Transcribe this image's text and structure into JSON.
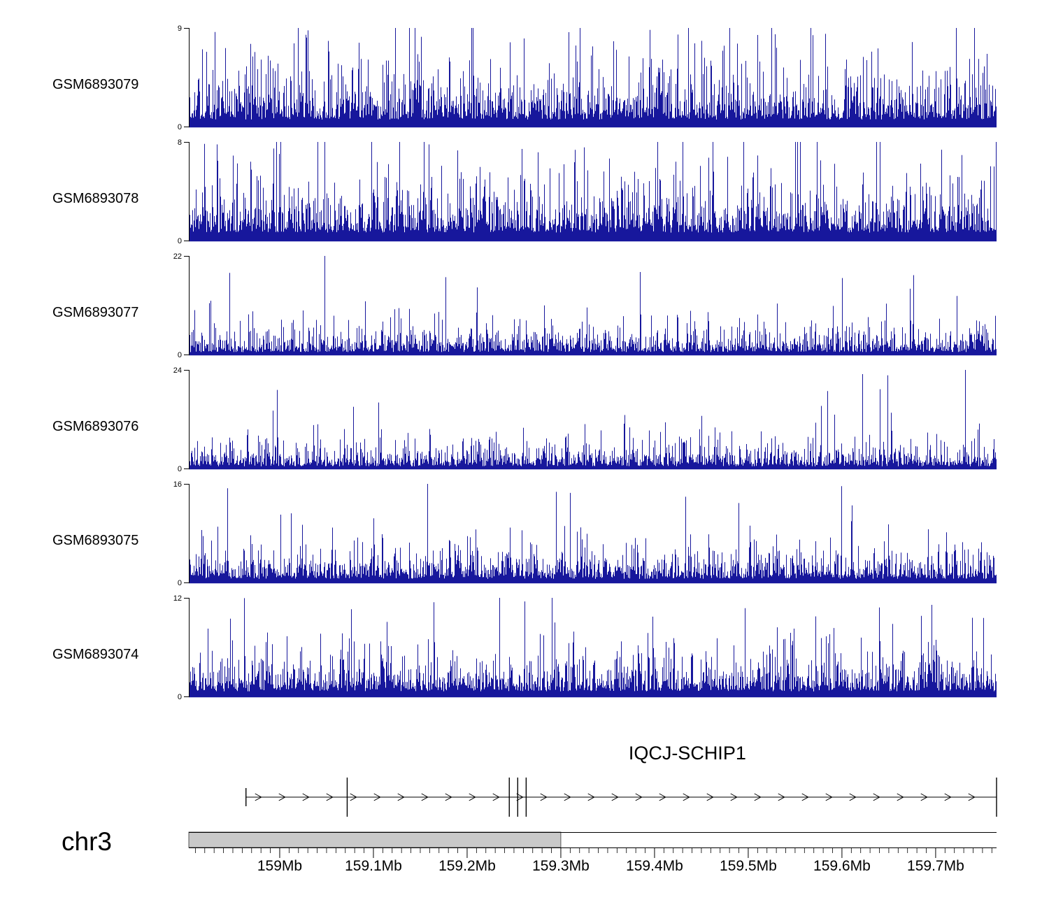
{
  "chart_data": {
    "type": "area",
    "kind": "genome-coverage-tracks",
    "title": "",
    "signal_color": "#17179c",
    "grid": false,
    "tracks": [
      {
        "name": "GSM6893079",
        "ymin": 0,
        "ymax": 9,
        "seed": 41
      },
      {
        "name": "GSM6893078",
        "ymin": 0,
        "ymax": 8,
        "seed": 42
      },
      {
        "name": "GSM6893077",
        "ymin": 0,
        "ymax": 22,
        "seed": 43
      },
      {
        "name": "GSM6893076",
        "ymin": 0,
        "ymax": 24,
        "seed": 44
      },
      {
        "name": "GSM6893075",
        "ymin": 0,
        "ymax": 16,
        "seed": 45
      },
      {
        "name": "GSM6893074",
        "ymin": 0,
        "ymax": 12,
        "seed": 46
      }
    ],
    "x_axis": {
      "chromosome": "chr3",
      "unit": "Mb",
      "start_mb": 158.903,
      "end_mb": 159.765,
      "minor_tick_interval_mb": 0.01,
      "major_ticks_mb": [
        159.0,
        159.1,
        159.2,
        159.3,
        159.4,
        159.5,
        159.6,
        159.7
      ],
      "tick_labels": [
        "159Mb",
        "159.1Mb",
        "159.2Mb",
        "159.3Mb",
        "159.4Mb",
        "159.5Mb",
        "159.6Mb",
        "159.7Mb"
      ],
      "highlight_region_mb": {
        "start": 158.903,
        "end": 159.3,
        "fill": "#c9c9c9"
      }
    },
    "gene": {
      "name": "IQCJ-SCHIP1",
      "strand": "+",
      "start_mb": 158.964,
      "end_mb": 159.765,
      "label_center_mb": 159.435,
      "exon_marks": [
        {
          "pos_mb": 158.964,
          "size": "small"
        },
        {
          "pos_mb": 159.072,
          "size": "large"
        },
        {
          "pos_mb": 159.245,
          "size": "large"
        },
        {
          "pos_mb": 159.254,
          "size": "large"
        },
        {
          "pos_mb": 159.263,
          "size": "large"
        },
        {
          "pos_mb": 159.765,
          "size": "large"
        }
      ]
    }
  }
}
